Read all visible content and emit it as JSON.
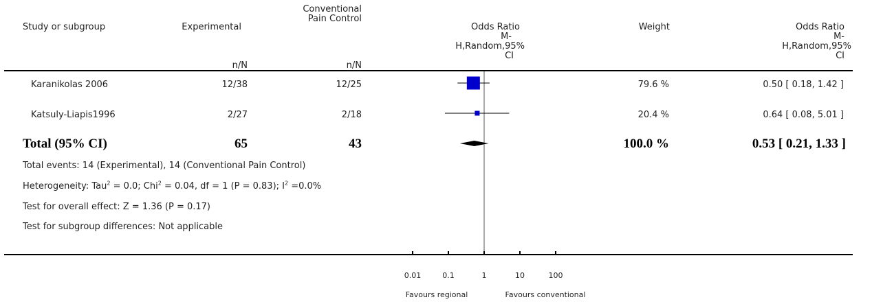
{
  "header": {
    "study": "Study or subgroup",
    "experimental": "Experimental",
    "conventional_line1": "Conventional",
    "conventional_line2": "Pain Control",
    "or_plot_l1": "Odds Ratio",
    "or_plot_l2": "M-",
    "or_plot_l3": "H,Random,95%",
    "or_plot_l4": "CI",
    "weight": "Weight",
    "or_text_l1": "Odds Ratio",
    "or_text_l2": "M-",
    "or_text_l3": "H,Random,95%",
    "or_text_l4": "CI",
    "exp_nN": "n/N",
    "conv_nN": "n/N"
  },
  "rows": [
    {
      "study": "Karanikolas 2006",
      "exp": "12/38",
      "conv": "12/25",
      "weight": "79.6 %",
      "or": "0.50 [ 0.18, 1.42 ]"
    },
    {
      "study": "Katsuly-Liapis1996",
      "exp": "2/27",
      "conv": "2/18",
      "weight": "20.4 %",
      "or": "0.64 [ 0.08, 5.01 ]"
    }
  ],
  "total": {
    "label": "Total (95% CI)",
    "exp": "65",
    "conv": "43",
    "weight": "100.0 %",
    "or": "0.53 [ 0.21, 1.33 ]"
  },
  "notes": {
    "events": "Total events: 14 (Experimental), 14 (Conventional Pain Control)",
    "het_a": "Heterogeneity: Tau",
    "het_b": " = 0.0; Chi",
    "het_c": " = 0.04, df = 1 (P = 0.83); I",
    "het_d": " =0.0%",
    "sup2": "2",
    "overall": "Test for overall effect: Z = 1.36 (P = 0.17)",
    "subgroup": "Test for subgroup differences: Not applicable"
  },
  "axis": {
    "ticks": [
      "0.01",
      "0.1",
      "1",
      "10",
      "100"
    ],
    "favours_left": "Favours regional",
    "favours_right": "Favours conventional"
  },
  "colors": {
    "marker": "#0000cc",
    "line": "#000000"
  },
  "chart_data": {
    "type": "scatter",
    "scale": "log",
    "xlim": [
      0.01,
      100
    ],
    "reference_line": 1,
    "points": [
      {
        "name": "Karanikolas 2006",
        "or": 0.5,
        "lo": 0.18,
        "hi": 1.42,
        "weight": 79.6
      },
      {
        "name": "Katsuly-Liapis1996",
        "or": 0.64,
        "lo": 0.08,
        "hi": 5.01,
        "weight": 20.4
      }
    ],
    "summary": {
      "or": 0.53,
      "lo": 0.21,
      "hi": 1.33
    },
    "tick_labels": [
      "0.01",
      "0.1",
      "1",
      "10",
      "100"
    ]
  }
}
